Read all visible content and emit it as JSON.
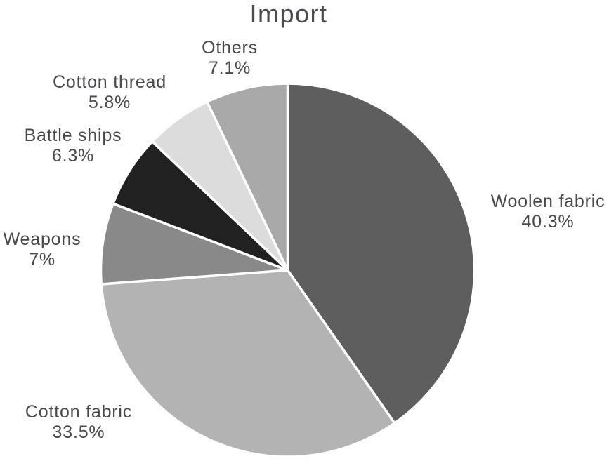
{
  "chart_data": {
    "type": "pie",
    "title": "Import",
    "direction": "clockwise",
    "start_angle_deg": 0,
    "legend": "none",
    "label_style": "category name and percent placed outside each slice",
    "background_color": "#ffffff",
    "slice_border_color": "#ffffff",
    "text_color": "#47474e",
    "slices": [
      {
        "label": "Woolen fabric",
        "value": 40.3,
        "pct_label": "40.3%",
        "color": "#5e5e5e"
      },
      {
        "label": "Cotton fabric",
        "value": 33.5,
        "pct_label": "33.5%",
        "color": "#b3b3b3"
      },
      {
        "label": "Weapons",
        "value": 7,
        "pct_label": "7%",
        "color": "#898989"
      },
      {
        "label": "Battle ships",
        "value": 6.3,
        "pct_label": "6.3%",
        "color": "#212121"
      },
      {
        "label": "Cotton thread",
        "value": 5.8,
        "pct_label": "5.8%",
        "color": "#dcdcdc"
      },
      {
        "label": "Others",
        "value": 7.1,
        "pct_label": "7.1%",
        "color": "#a9a9a9"
      }
    ]
  }
}
